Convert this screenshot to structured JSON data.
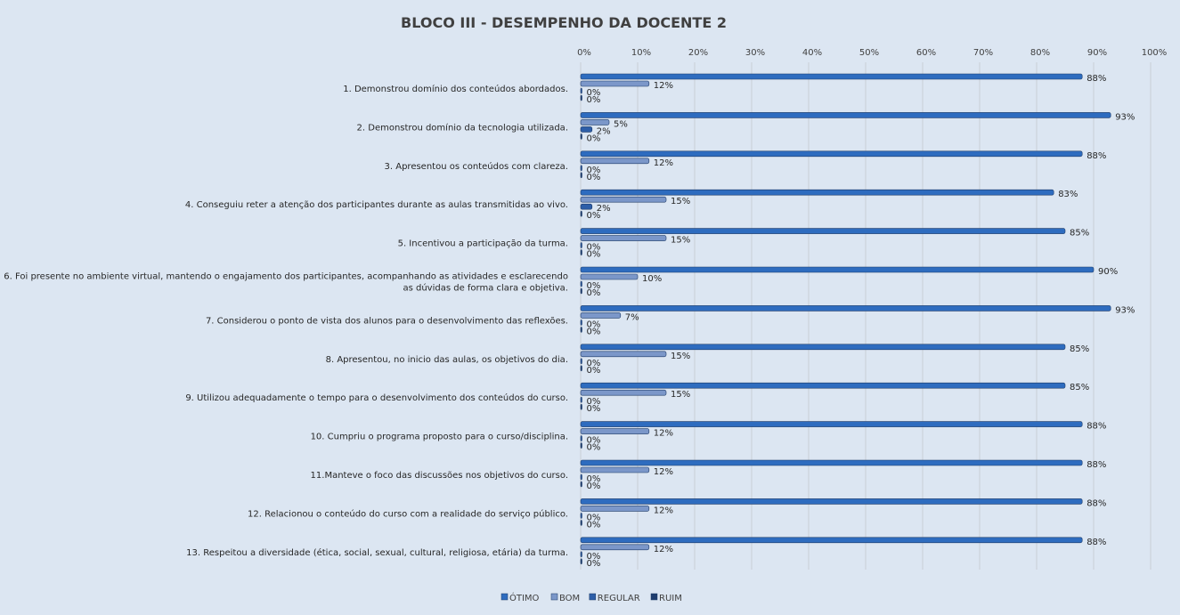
{
  "chart_data": {
    "type": "bar",
    "orientation": "horizontal",
    "title": "BLOCO III - DESEMPENHO  DA DOCENTE 2",
    "xlim": [
      0,
      100
    ],
    "xticks": [
      "0%",
      "10%",
      "20%",
      "30%",
      "40%",
      "50%",
      "60%",
      "70%",
      "80%",
      "90%",
      "100%"
    ],
    "grid": true,
    "legend_position": "bottom",
    "categories": [
      [
        "1. Demonstrou domínio dos conteúdos abordados."
      ],
      [
        "2. Demonstrou domínio da tecnologia utilizada."
      ],
      [
        "3. Apresentou os conteúdos com clareza."
      ],
      [
        "4. Conseguiu reter a atenção dos participantes durante as aulas transmitidas ao vivo."
      ],
      [
        "5. Incentivou a participação da turma."
      ],
      [
        "6. Foi presente no ambiente virtual, mantendo o engajamento dos participantes, acompanhando as atividades e esclarecendo",
        "as dúvidas de forma clara e objetiva."
      ],
      [
        "7. Considerou o ponto de vista dos alunos para o desenvolvimento das reflexões."
      ],
      [
        "8. Apresentou, no inicio das aulas, os objetivos do dia."
      ],
      [
        "9. Utilizou adequadamente o tempo para o desenvolvimento dos conteúdos do curso."
      ],
      [
        "10. Cumpriu o programa proposto para o curso/disciplina."
      ],
      [
        "11.Manteve o foco das discussões nos objetivos do curso."
      ],
      [
        "12. Relacionou o conteúdo do curso com a realidade do serviço público."
      ],
      [
        "13. Respeitou a diversidade (ética, social, sexual, cultural, religiosa, etária) da turma."
      ]
    ],
    "series": [
      {
        "name": "ÓTIMO",
        "color": "#2e6cbf",
        "values": [
          88,
          93,
          88,
          83,
          85,
          90,
          93,
          85,
          85,
          88,
          88,
          88,
          88
        ]
      },
      {
        "name": "BOM",
        "color": "#7b97c9",
        "values": [
          12,
          5,
          12,
          15,
          15,
          10,
          7,
          15,
          15,
          12,
          12,
          12,
          12
        ]
      },
      {
        "name": "REGULAR",
        "color": "#2d5ea8",
        "values": [
          0,
          2,
          0,
          2,
          0,
          0,
          0,
          0,
          0,
          0,
          0,
          0,
          0
        ]
      },
      {
        "name": "RUIM",
        "color": "#1f3d6e",
        "values": [
          0,
          0,
          0,
          0,
          0,
          0,
          0,
          0,
          0,
          0,
          0,
          0,
          0
        ]
      }
    ]
  }
}
